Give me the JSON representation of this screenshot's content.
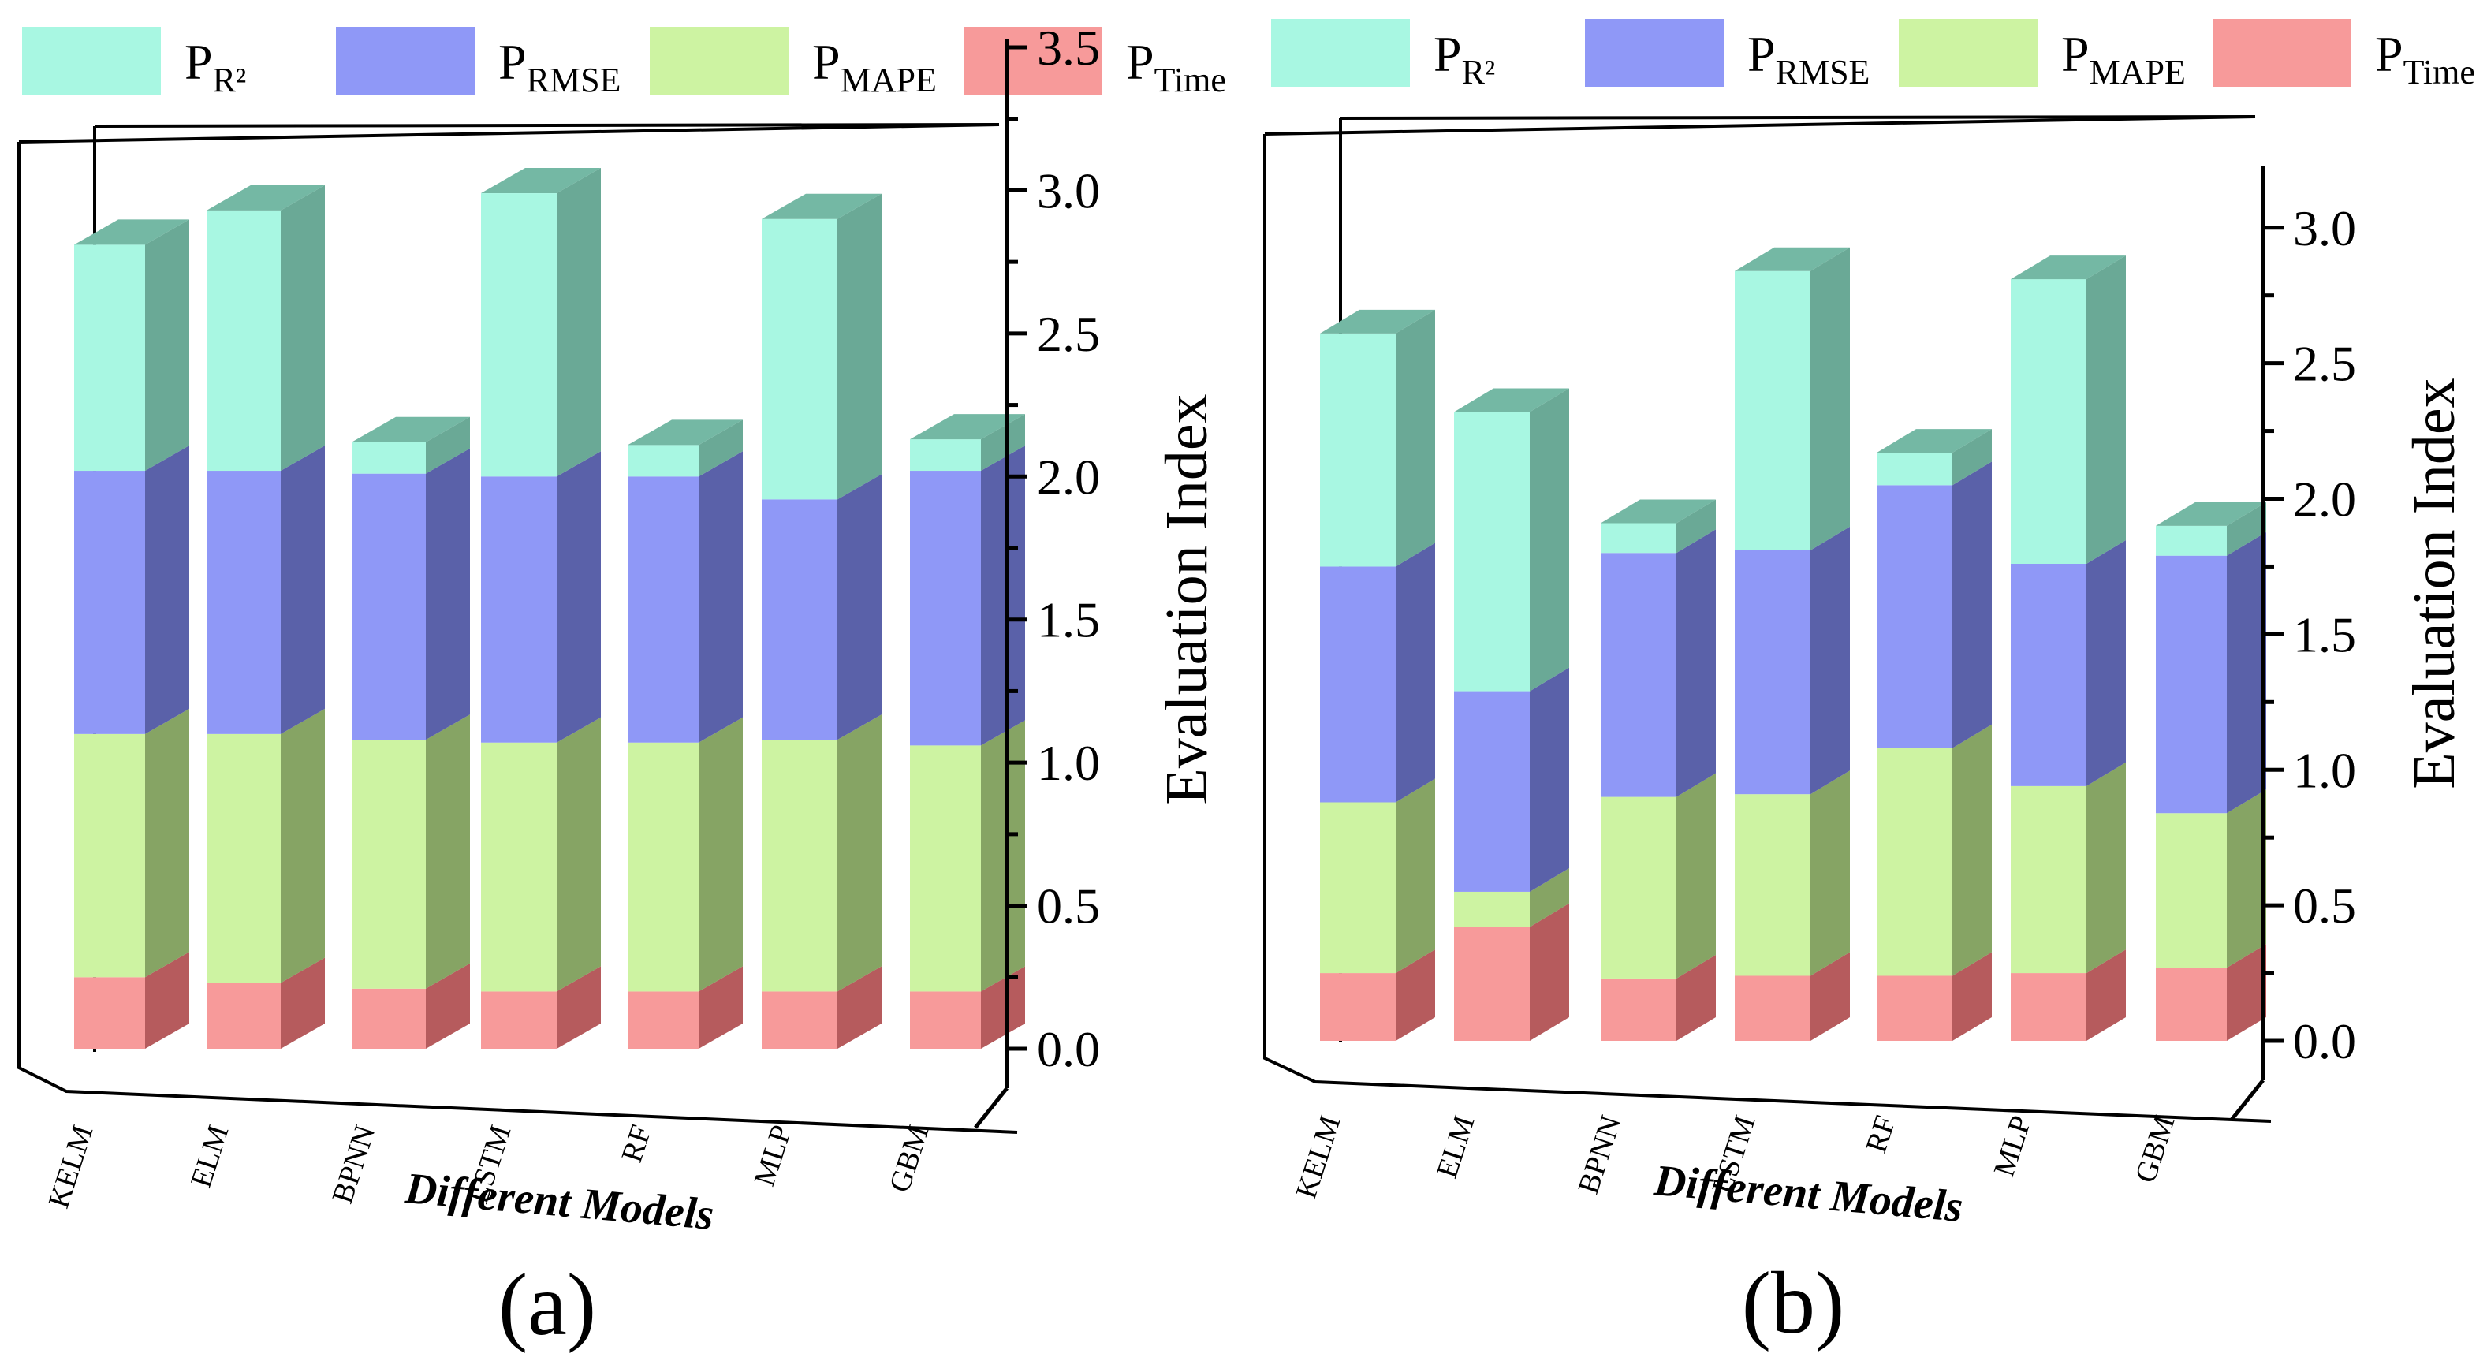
{
  "chart_data": [
    {
      "type": "bar",
      "stacked": true,
      "label": "(a)",
      "categories": [
        "KELM",
        "ELM",
        "BPNN",
        "LSTM",
        "RF",
        "MLP",
        "GBM"
      ],
      "series": [
        {
          "name": "P_Time",
          "values": [
            0.25,
            0.23,
            0.21,
            0.2,
            0.2,
            0.2,
            0.2
          ]
        },
        {
          "name": "P_MAPE",
          "values": [
            0.85,
            0.87,
            0.87,
            0.87,
            0.87,
            0.88,
            0.86
          ]
        },
        {
          "name": "P_RMSE",
          "values": [
            0.92,
            0.92,
            0.93,
            0.93,
            0.93,
            0.84,
            0.96
          ]
        },
        {
          "name": "P_R2",
          "values": [
            0.79,
            0.91,
            0.11,
            0.99,
            0.11,
            0.98,
            0.11
          ]
        }
      ],
      "ylabel": "Evaluation Index",
      "xlabel": "Different Models",
      "ylim": [
        0,
        3.5
      ],
      "yticks": [
        "0.0",
        "0.5",
        "1.0",
        "1.5",
        "2.0",
        "2.5",
        "3.0",
        "3.5"
      ],
      "grid": false,
      "legend": "top"
    },
    {
      "type": "bar",
      "stacked": true,
      "label": "(b)",
      "categories": [
        "KELM",
        "ELM",
        "BPNN",
        "LSTM",
        "RF",
        "MLP",
        "GBM"
      ],
      "series": [
        {
          "name": "P_Time",
          "values": [
            0.25,
            0.42,
            0.23,
            0.24,
            0.24,
            0.25,
            0.27
          ]
        },
        {
          "name": "P_MAPE",
          "values": [
            0.63,
            0.13,
            0.67,
            0.67,
            0.84,
            0.69,
            0.57
          ]
        },
        {
          "name": "P_RMSE",
          "values": [
            0.87,
            0.74,
            0.9,
            0.9,
            0.97,
            0.82,
            0.95
          ]
        },
        {
          "name": "P_R2",
          "values": [
            0.86,
            1.03,
            0.11,
            1.03,
            0.12,
            1.05,
            0.11
          ]
        }
      ],
      "ylabel": "Evaluation Index",
      "xlabel": "Different Models",
      "ylim": [
        0,
        3.2
      ],
      "yticks": [
        "0.0",
        "0.5",
        "1.0",
        "1.5",
        "2.0",
        "2.5",
        "3.0"
      ],
      "grid": false,
      "legend": "top"
    }
  ],
  "legend": [
    {
      "key": "P_R2",
      "main": "P",
      "sub": "R²",
      "color": "#a8f7e2"
    },
    {
      "key": "P_RMSE",
      "main": "P",
      "sub": "RMSE",
      "color": "#8f98f7"
    },
    {
      "key": "P_MAPE",
      "main": "P",
      "sub": "MAPE",
      "color": "#cdf3a2"
    },
    {
      "key": "P_Time",
      "main": "P",
      "sub": "Time",
      "color": "#f79a9a"
    }
  ],
  "colors": {
    "P_Time": {
      "front": "#f79a9a",
      "side": "#b65b5d",
      "top": "#c87878"
    },
    "P_MAPE": {
      "front": "#cdf3a2",
      "side": "#86a464",
      "top": "#a8c884"
    },
    "P_RMSE": {
      "front": "#8f98f7",
      "side": "#5a61a9",
      "top": "#7078d0"
    },
    "P_R2": {
      "front": "#a8f7e2",
      "side": "#6aa996",
      "top": "#74b8a4"
    }
  }
}
